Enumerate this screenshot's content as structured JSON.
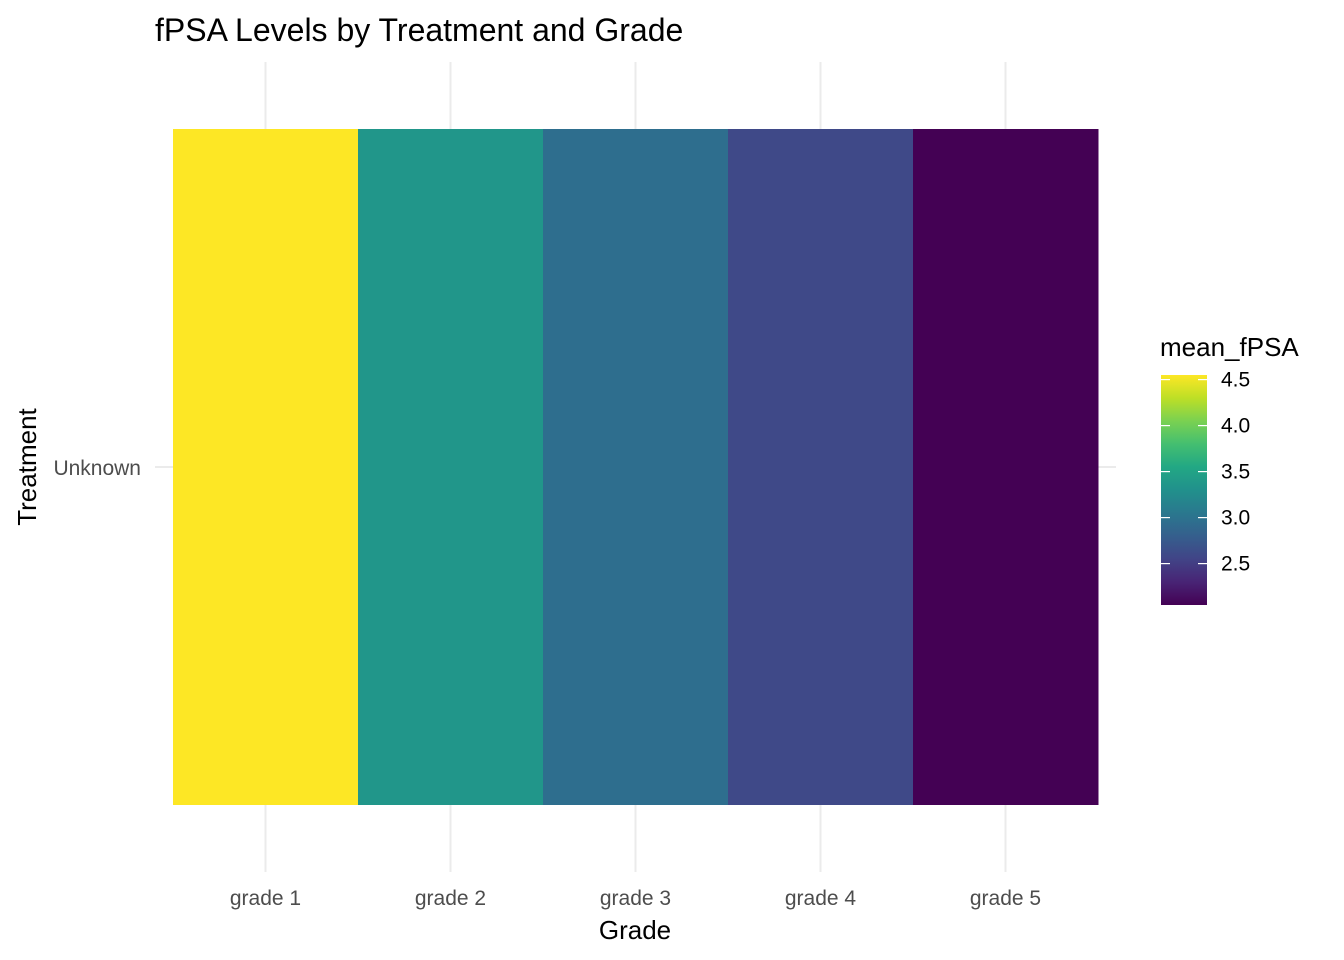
{
  "chart_data": {
    "type": "heatmap",
    "title": "fPSA Levels by Treatment and Grade",
    "xlabel": "Grade",
    "ylabel": "Treatment",
    "x_categories": [
      "grade 1",
      "grade 2",
      "grade 3",
      "grade 4",
      "grade 5"
    ],
    "y_categories": [
      "Unknown"
    ],
    "cells": [
      {
        "x": "grade 1",
        "y": "Unknown",
        "value": 4.55
      },
      {
        "x": "grade 2",
        "y": "Unknown",
        "value": 3.35
      },
      {
        "x": "grade 3",
        "y": "Unknown",
        "value": 2.95
      },
      {
        "x": "grade 4",
        "y": "Unknown",
        "value": 2.6
      },
      {
        "x": "grade 5",
        "y": "Unknown",
        "value": 2.05
      }
    ],
    "legend": {
      "title": "mean_fPSA",
      "placement": "right",
      "ticks": [
        "4.5",
        "4.0",
        "3.5",
        "3.0",
        "2.5"
      ],
      "tick_values": [
        4.5,
        4.0,
        3.5,
        3.0,
        2.5
      ],
      "range": [
        2.05,
        4.55
      ]
    },
    "colormap": "viridis",
    "grid": true
  }
}
